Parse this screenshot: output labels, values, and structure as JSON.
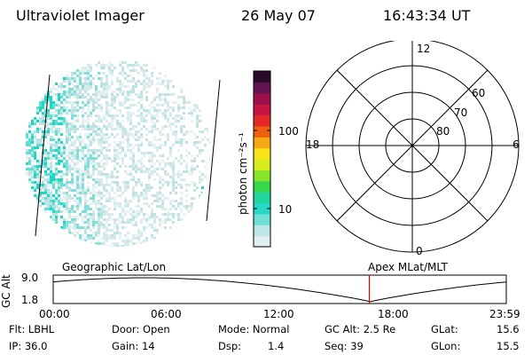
{
  "header": {
    "title": "Ultraviolet Imager",
    "date": "26 May 07",
    "time": "16:43:34 UT"
  },
  "colorbar": {
    "unit_label": "photon cm⁻²s⁻¹",
    "ticks": [
      "100",
      "10"
    ],
    "colors": [
      "#dfeeee",
      "#bfe6e6",
      "#6fe0d8",
      "#27d8c8",
      "#22d6a0",
      "#35d84a",
      "#88e628",
      "#d6ee1e",
      "#f6e418",
      "#f8a812",
      "#ee6010",
      "#e42828",
      "#c81440",
      "#9e0f4c",
      "#62124e",
      "#2a0a2a"
    ]
  },
  "polar_plot": {
    "mlt_labels": [
      "12",
      "18",
      "6",
      "0"
    ],
    "lat_labels": [
      "60",
      "70",
      "80"
    ]
  },
  "timeline": {
    "ylabel": "GC Alt",
    "y_ticks": [
      "9.0",
      "1.8"
    ],
    "left_label": "Geographic Lat/Lon",
    "right_label": "Apex MLat/MLT",
    "x_ticks": [
      "00:00",
      "06:00",
      "12:00",
      "18:00",
      "23:59"
    ],
    "current_time_fraction": 0.6977
  },
  "info": {
    "row1": {
      "flt": "Flt: LBHL",
      "door": "Door: Open",
      "mode": "Mode: Normal",
      "gcalt": "GC Alt: 2.5 Re",
      "glat_label": "GLat:",
      "glat_value": "15.6"
    },
    "row2": {
      "ip": "IP: 36.0",
      "gain": "Gain: 14",
      "dsp_label": "Dsp:",
      "dsp_value": "1.4",
      "seq": "Seq: 39",
      "glon_label": "GLon:",
      "glon_value": "15.5"
    }
  }
}
